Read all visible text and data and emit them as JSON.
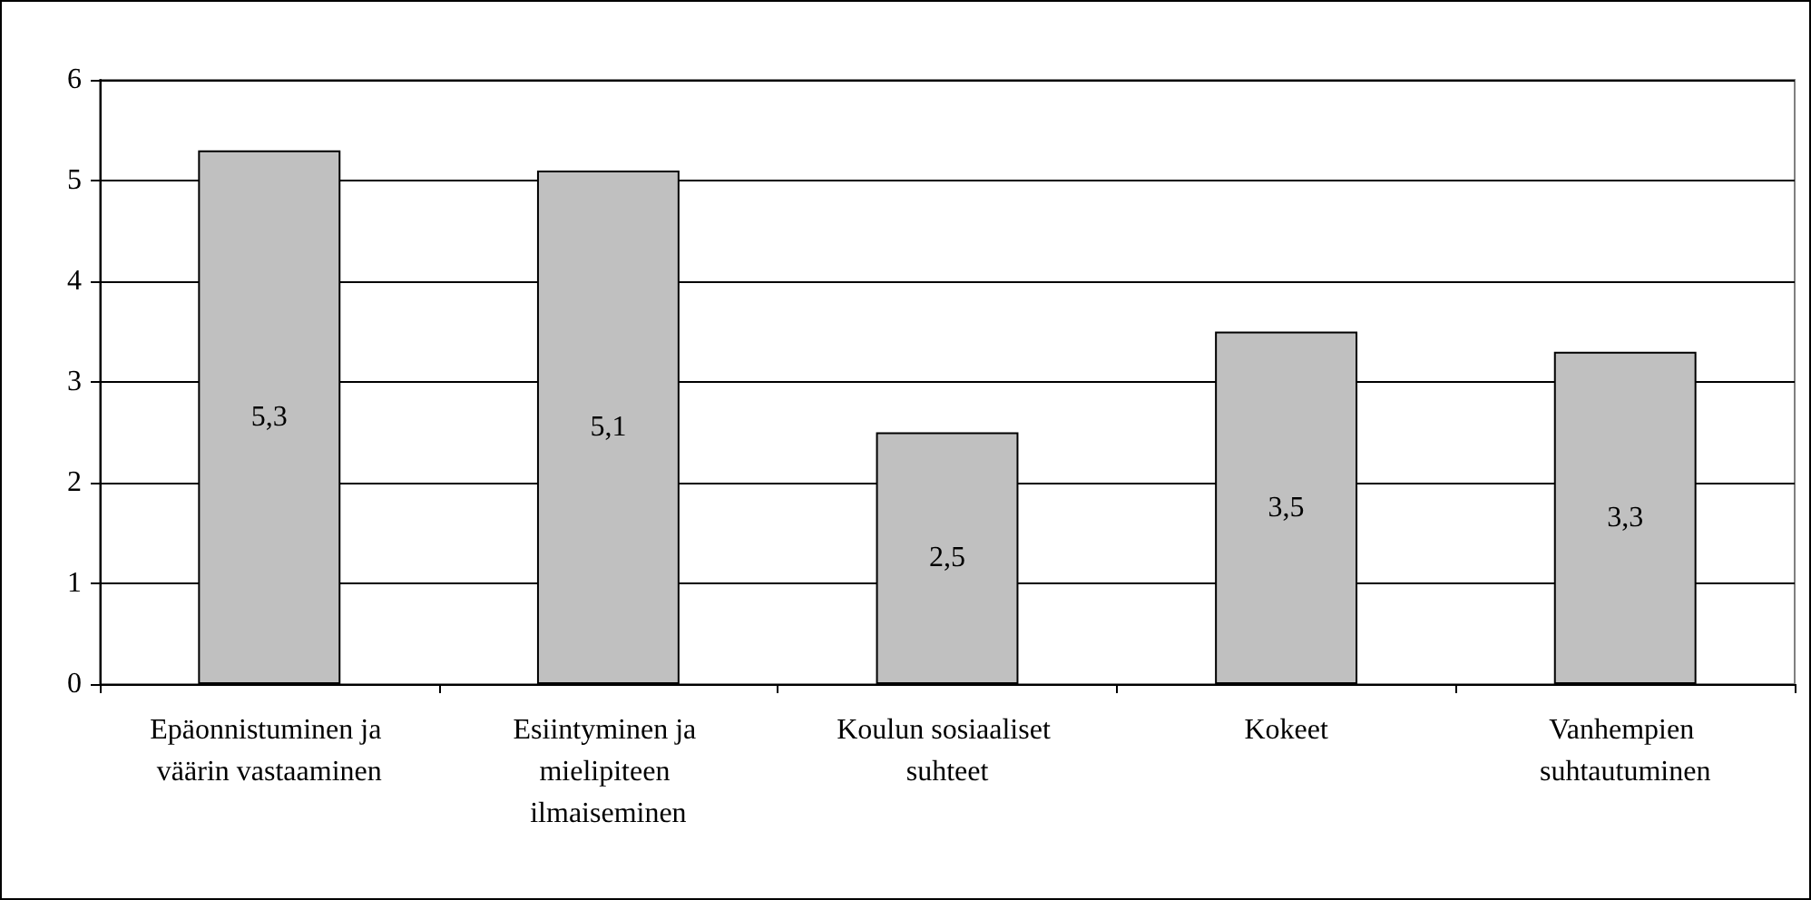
{
  "chart_data": {
    "type": "bar",
    "categories": [
      "Epäonnistuminen ja väärin vastaaminen",
      "Esiintyminen ja mielipiteen ilmaiseminen",
      "Koulun sosiaaliset suhteet",
      "Kokeet",
      "Vanhempien suhtautuminen"
    ],
    "values": [
      5.3,
      5.1,
      2.5,
      3.5,
      3.3
    ],
    "value_labels": [
      "5,3",
      "5,1",
      "2,5",
      "3,5",
      "3,3"
    ],
    "color": "#c0c0c0",
    "ylim": [
      0,
      6
    ],
    "yticks": [
      0,
      1,
      2,
      3,
      4,
      5,
      6
    ],
    "grid": "y"
  }
}
